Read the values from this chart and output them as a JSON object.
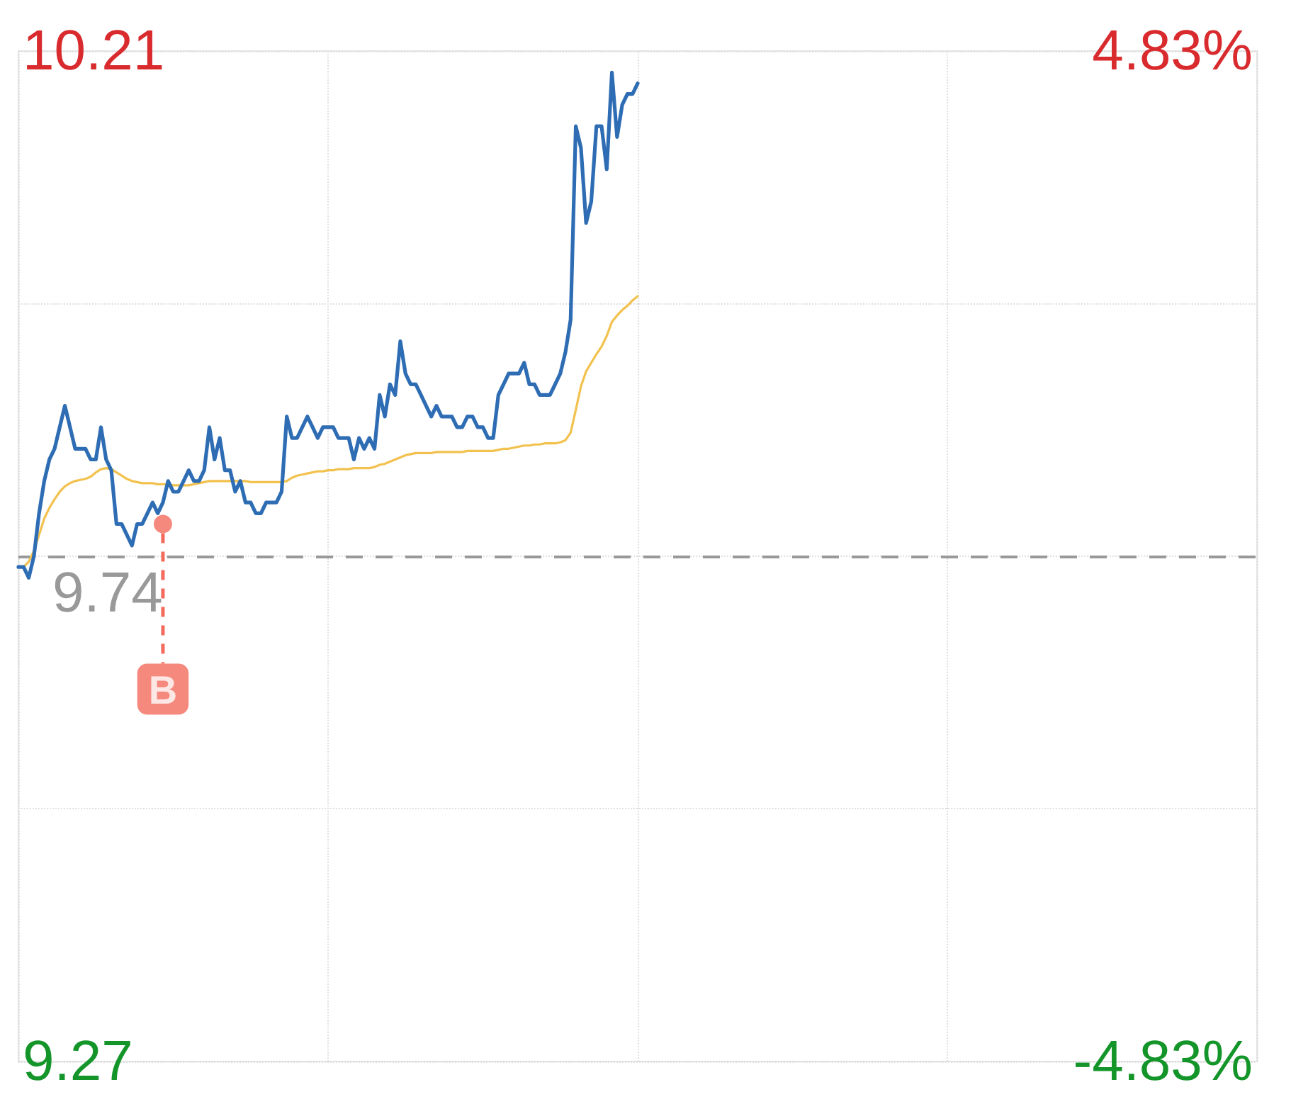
{
  "chart_data": {
    "type": "line",
    "categories": [
      null,
      null,
      null,
      null,
      null,
      null,
      null,
      null,
      null,
      null,
      null,
      null,
      null,
      null,
      null,
      null,
      null,
      null,
      null,
      null,
      null,
      null,
      null,
      null,
      null,
      null,
      null,
      null,
      null,
      null,
      null,
      null,
      null,
      null,
      null,
      null,
      null,
      null,
      null,
      null,
      null,
      null,
      null,
      null,
      null,
      null,
      null,
      null,
      null,
      null,
      null,
      null,
      null,
      null,
      null,
      null,
      null,
      null,
      null,
      null,
      null,
      null,
      null,
      null,
      null,
      null,
      null,
      null,
      null,
      null,
      null,
      null,
      null,
      null,
      null,
      null,
      null,
      null,
      null,
      null,
      null,
      null,
      null,
      null,
      null,
      null,
      null,
      null,
      null,
      null,
      null,
      null,
      null,
      null,
      null,
      null,
      null,
      null,
      null,
      null,
      null,
      null,
      null,
      null,
      null,
      null,
      null,
      null,
      null,
      null,
      null,
      null,
      null,
      null,
      null,
      null,
      null,
      null,
      null,
      null,
      null,
      null,
      null,
      null,
      null,
      null,
      null,
      null,
      null,
      null,
      null,
      null,
      null,
      null,
      null,
      null,
      null,
      null,
      null,
      null,
      null,
      null,
      null,
      null,
      null,
      null,
      null,
      null,
      null,
      null,
      null,
      null,
      null,
      null,
      null,
      null,
      null,
      null,
      null,
      null,
      null,
      null,
      null,
      null,
      null,
      null,
      null,
      null,
      null,
      null,
      null,
      null,
      null,
      null,
      null,
      null,
      null,
      null,
      null,
      null,
      null,
      null,
      null,
      null,
      null,
      null,
      null,
      null,
      null,
      null,
      null,
      null,
      null,
      null,
      null,
      null,
      null,
      null,
      null,
      null,
      null,
      null,
      null,
      null,
      null,
      null,
      null,
      null,
      null,
      null,
      null,
      null,
      null,
      null,
      null,
      null,
      null,
      null,
      null,
      null,
      null,
      null,
      null,
      null,
      null,
      null,
      null,
      null,
      null,
      null,
      null,
      null,
      null,
      null,
      null,
      null,
      null,
      null,
      null,
      null,
      null
    ],
    "series": [
      {
        "color": "#2e6db4",
        "values": [
          9.73,
          9.73,
          9.72,
          9.74,
          9.78,
          9.81,
          9.83,
          9.84,
          9.86,
          9.88,
          9.86,
          9.84,
          9.84,
          9.84,
          9.83,
          9.83,
          9.86,
          9.83,
          9.82,
          9.77,
          9.77,
          9.76,
          9.75,
          9.77,
          9.77,
          9.78,
          9.79,
          9.78,
          9.79,
          9.81,
          9.8,
          9.8,
          9.81,
          9.82,
          9.81,
          9.81,
          9.82,
          9.86,
          9.83,
          9.85,
          9.82,
          9.82,
          9.8,
          9.81,
          9.79,
          9.79,
          9.78,
          9.78,
          9.79,
          9.79,
          9.79,
          9.8,
          9.87,
          9.85,
          9.85,
          9.86,
          9.87,
          9.86,
          9.85,
          9.86,
          9.86,
          9.86,
          9.85,
          9.85,
          9.85,
          9.83,
          9.85,
          9.84,
          9.85,
          9.84,
          9.89,
          9.87,
          9.9,
          9.89,
          9.94,
          9.91,
          9.9,
          9.9,
          9.89,
          9.88,
          9.87,
          9.88,
          9.87,
          9.87,
          9.87,
          9.86,
          9.86,
          9.87,
          9.87,
          9.86,
          9.86,
          9.85,
          9.85,
          9.89,
          9.9,
          9.91,
          9.91,
          9.91,
          9.92,
          9.9,
          9.9,
          9.89,
          9.89,
          9.89,
          9.9,
          9.91,
          9.93,
          9.96,
          10.14,
          10.12,
          10.05,
          10.07,
          10.14,
          10.14,
          10.1,
          10.19,
          10.13,
          10.16,
          10.17,
          10.17,
          10.18,
          null,
          null,
          null,
          null,
          null,
          null,
          null,
          null,
          null,
          null,
          null,
          null,
          null,
          null,
          null,
          null,
          null,
          null,
          null,
          null,
          null,
          null,
          null,
          null,
          null,
          null,
          null,
          null,
          null,
          null,
          null,
          null,
          null,
          null,
          null,
          null,
          null,
          null,
          null,
          null,
          null,
          null,
          null,
          null,
          null,
          null,
          null,
          null,
          null,
          null,
          null,
          null,
          null,
          null,
          null,
          null,
          null,
          null,
          null,
          null,
          null,
          null,
          null,
          null,
          null,
          null,
          null,
          null,
          null,
          null,
          null,
          null,
          null,
          null,
          null,
          null,
          null,
          null,
          null,
          null,
          null,
          null,
          null,
          null,
          null,
          null,
          null,
          null,
          null,
          null,
          null,
          null,
          null,
          null,
          null,
          null,
          null,
          null,
          null,
          null,
          null,
          null,
          null,
          null,
          null,
          null,
          null,
          null,
          null,
          null,
          null,
          null,
          null,
          null,
          null,
          null,
          null,
          null,
          null,
          null
        ]
      },
      {
        "color": "#f2c14e",
        "values": [
          9.73,
          9.73,
          9.735,
          9.745,
          9.76,
          9.775,
          9.785,
          9.793,
          9.8,
          9.805,
          9.808,
          9.81,
          9.811,
          9.812,
          9.814,
          9.818,
          9.821,
          9.822,
          9.821,
          9.818,
          9.815,
          9.812,
          9.81,
          9.809,
          9.808,
          9.808,
          9.808,
          9.807,
          9.807,
          9.807,
          9.806,
          9.806,
          9.806,
          9.806,
          9.807,
          9.808,
          9.809,
          9.81,
          9.81,
          9.81,
          9.81,
          9.81,
          9.81,
          9.81,
          9.81,
          9.809,
          9.809,
          9.809,
          9.809,
          9.809,
          9.809,
          9.809,
          9.81,
          9.813,
          9.815,
          9.816,
          9.817,
          9.818,
          9.819,
          9.819,
          9.82,
          9.82,
          9.821,
          9.821,
          9.821,
          9.822,
          9.822,
          9.822,
          9.822,
          9.823,
          9.825,
          9.826,
          9.828,
          9.83,
          9.832,
          9.834,
          9.835,
          9.836,
          9.836,
          9.836,
          9.836,
          9.837,
          9.837,
          9.837,
          9.837,
          9.837,
          9.837,
          9.838,
          9.838,
          9.838,
          9.838,
          9.838,
          9.838,
          9.839,
          9.84,
          9.84,
          9.841,
          9.842,
          9.843,
          9.843,
          9.844,
          9.844,
          9.845,
          9.845,
          9.845,
          9.846,
          9.848,
          9.855,
          9.876,
          9.898,
          9.912,
          9.92,
          9.928,
          9.935,
          9.945,
          9.958,
          9.964,
          9.969,
          9.973,
          9.978,
          9.982,
          null,
          null,
          null,
          null,
          null,
          null,
          null,
          null,
          null,
          null,
          null,
          null,
          null,
          null,
          null,
          null,
          null,
          null,
          null,
          null,
          null,
          null,
          null,
          null,
          null,
          null,
          null,
          null,
          null,
          null,
          null,
          null,
          null,
          null,
          null,
          null,
          null,
          null,
          null,
          null,
          null,
          null,
          null,
          null,
          null,
          null,
          null,
          null,
          null,
          null,
          null,
          null,
          null,
          null,
          null,
          null,
          null,
          null,
          null,
          null,
          null,
          null,
          null,
          null,
          null,
          null,
          null,
          null,
          null,
          null,
          null,
          null,
          null,
          null,
          null,
          null,
          null,
          null,
          null,
          null,
          null,
          null,
          null,
          null,
          null,
          null,
          null,
          null,
          null,
          null,
          null,
          null,
          null,
          null,
          null,
          null,
          null,
          null,
          null,
          null,
          null,
          null,
          null,
          null,
          null,
          null,
          null,
          null,
          null,
          null,
          null,
          null,
          null,
          null,
          null,
          null,
          null,
          null,
          null,
          null
        ]
      },
      {
        "type": "scatter",
        "color": "#f36b5c",
        "marker": "circle",
        "values": [
          null,
          null,
          null,
          null,
          null,
          null,
          null,
          null,
          null,
          null,
          null,
          null,
          null,
          null,
          null,
          null,
          null,
          null,
          null,
          null,
          null,
          null,
          null,
          null,
          null,
          null,
          null,
          null,
          9.77,
          null,
          null,
          null,
          null,
          null,
          null,
          null,
          null,
          null,
          null,
          null,
          null,
          null,
          null,
          null,
          null,
          null,
          null,
          null,
          null,
          null,
          null,
          null,
          null,
          null,
          null,
          null,
          null,
          null,
          null,
          null,
          null,
          null,
          null,
          null,
          null,
          null,
          null,
          null,
          null,
          null,
          null,
          null,
          null,
          null,
          null,
          null,
          null,
          null,
          null,
          null,
          null,
          null,
          null,
          null,
          null,
          null,
          null,
          null,
          null,
          null,
          null,
          null,
          null,
          null,
          null,
          null,
          null,
          null,
          null,
          null,
          null,
          null,
          null,
          null,
          null,
          null,
          null,
          null,
          null,
          null,
          null,
          null,
          null,
          null,
          null,
          null,
          null,
          null,
          null,
          null,
          null,
          null,
          null,
          null,
          null,
          null,
          null,
          null,
          null,
          null,
          null,
          null,
          null,
          null,
          null,
          null,
          null,
          null,
          null,
          null,
          null,
          null,
          null,
          null,
          null,
          null,
          null,
          null,
          null,
          null,
          null,
          null,
          null,
          null,
          null,
          null,
          null,
          null,
          null,
          null,
          null,
          null,
          null,
          null,
          null,
          null,
          null,
          null,
          null,
          null,
          null,
          null,
          null,
          null,
          null,
          null,
          null,
          null,
          null,
          null,
          null,
          null,
          null,
          null,
          null,
          null,
          null,
          null,
          null,
          null,
          null,
          null,
          null,
          null,
          null,
          null,
          null,
          null,
          null,
          null,
          null,
          null,
          null,
          null,
          null,
          null,
          null,
          null,
          null,
          null,
          null,
          null,
          null,
          null,
          null,
          null,
          null,
          null,
          null,
          null,
          null,
          null,
          null,
          null,
          null,
          null,
          null,
          null,
          null,
          null,
          null,
          null,
          null,
          null,
          null,
          null,
          null,
          null,
          null,
          null,
          null
        ],
        "value_labels": [
          null,
          null,
          null,
          null,
          null,
          null,
          null,
          null,
          null,
          null,
          null,
          null,
          null,
          null,
          null,
          null,
          null,
          null,
          null,
          null,
          null,
          null,
          null,
          null,
          null,
          null,
          null,
          null,
          "B",
          null,
          null,
          null,
          null,
          null,
          null,
          null,
          null,
          null,
          null,
          null,
          null,
          null,
          null,
          null,
          null,
          null,
          null,
          null,
          null,
          null,
          null,
          null,
          null,
          null,
          null,
          null,
          null,
          null,
          null,
          null,
          null,
          null,
          null,
          null,
          null,
          null,
          null,
          null,
          null,
          null,
          null,
          null,
          null,
          null,
          null,
          null,
          null,
          null,
          null,
          null,
          null,
          null,
          null,
          null,
          null,
          null,
          null,
          null,
          null,
          null,
          null,
          null,
          null,
          null,
          null,
          null,
          null,
          null,
          null,
          null,
          null,
          null,
          null,
          null,
          null,
          null,
          null,
          null,
          null,
          null,
          null,
          null,
          null,
          null,
          null,
          null,
          null,
          null,
          null,
          null,
          null,
          null,
          null,
          null,
          null,
          null,
          null,
          null,
          null,
          null,
          null,
          null,
          null,
          null,
          null,
          null,
          null,
          null,
          null,
          null,
          null,
          null,
          null,
          null,
          null,
          null,
          null,
          null,
          null,
          null,
          null,
          null,
          null,
          null,
          null,
          null,
          null,
          null,
          null,
          null,
          null,
          null,
          null,
          null,
          null,
          null,
          null,
          null,
          null,
          null,
          null,
          null,
          null,
          null,
          null,
          null,
          null,
          null,
          null,
          null,
          null,
          null,
          null,
          null,
          null,
          null,
          null,
          null,
          null,
          null,
          null,
          null,
          null,
          null,
          null,
          null,
          null,
          null,
          null,
          null,
          null,
          null,
          null,
          null,
          null,
          null,
          null,
          null,
          null,
          null,
          null,
          null,
          null,
          null,
          null,
          null,
          null,
          null,
          null,
          null,
          null,
          null,
          null,
          null,
          null,
          null,
          null,
          null,
          null,
          null,
          null,
          null,
          null,
          null,
          null,
          null,
          null,
          null,
          null,
          null,
          null
        ]
      }
    ],
    "ylim": [
      9.27,
      10.21
    ],
    "yticks": [
      9.27,
      {
        "value": 9.505,
        "label": null
      },
      {
        "value": 9.74,
        "label": null
      },
      {
        "value": 9.975,
        "label": null
      },
      10.21
    ],
    "y2lim": [
      -4.83,
      4.83
    ],
    "y2ticks": [
      {
        "value": -4.83,
        "label": "-4.83%"
      },
      {
        "value": 4.83,
        "label": "4.83%"
      }
    ],
    "ref_lines": [
      {
        "axis": "y",
        "value": 9.74,
        "label": "9.74",
        "color": "#999999",
        "line_style": "dashed"
      }
    ],
    "grid": true
  }
}
